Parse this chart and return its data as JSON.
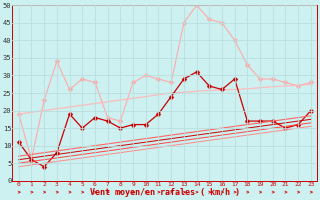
{
  "x": [
    0,
    1,
    2,
    3,
    4,
    5,
    6,
    7,
    8,
    9,
    10,
    11,
    12,
    13,
    14,
    15,
    16,
    17,
    18,
    19,
    20,
    21,
    22,
    23
  ],
  "series": [
    {
      "name": "rafales_max",
      "color": "#ffaaaa",
      "marker": "D",
      "markersize": 2.5,
      "linewidth": 0.8,
      "y": [
        19,
        6,
        23,
        34,
        26,
        29,
        28,
        18,
        17,
        28,
        30,
        29,
        28,
        45,
        50,
        46,
        45,
        40,
        33,
        29,
        29,
        28,
        27,
        28
      ]
    },
    {
      "name": "rafales_reg",
      "color": "#ffbbbb",
      "marker": null,
      "markersize": 0,
      "linewidth": 0.9,
      "y": [
        19,
        19.5,
        20,
        20.5,
        21,
        21.5,
        22,
        22.5,
        23,
        23.5,
        24,
        24.5,
        25,
        25.2,
        25.5,
        25.7,
        25.9,
        26,
        26.2,
        26.5,
        26.8,
        27,
        27.2,
        27.5
      ]
    },
    {
      "name": "vent_moy_max",
      "color": "#cc0000",
      "marker": "D",
      "markersize": 2.5,
      "linewidth": 0.9,
      "y": [
        11,
        6,
        4,
        8,
        19,
        15,
        18,
        17,
        15,
        16,
        16,
        19,
        24,
        29,
        31,
        27,
        26,
        29,
        17,
        17,
        17,
        15,
        16,
        20
      ]
    },
    {
      "name": "vent_moy_reg1",
      "color": "#ff6666",
      "marker": null,
      "markersize": 0,
      "linewidth": 0.8,
      "y": [
        7,
        7.5,
        8,
        8.5,
        9,
        9.5,
        10,
        10.5,
        11,
        11.5,
        12,
        12.5,
        13,
        13.5,
        14,
        14.5,
        15,
        15.5,
        16,
        16.5,
        17,
        17.5,
        18,
        18.5
      ]
    },
    {
      "name": "vent_moy_reg2",
      "color": "#cc0000",
      "marker": null,
      "markersize": 0,
      "linewidth": 0.7,
      "y": [
        6,
        6.5,
        7,
        7.5,
        8,
        8.5,
        9,
        9.5,
        10,
        10.5,
        11,
        11.5,
        12,
        12.5,
        13,
        13.5,
        14,
        14.5,
        15,
        15.5,
        16,
        16.5,
        17,
        17.5
      ]
    },
    {
      "name": "vent_moy_reg3",
      "color": "#ff4444",
      "marker": null,
      "markersize": 0,
      "linewidth": 0.7,
      "y": [
        5,
        5.5,
        6,
        6.5,
        7,
        7.5,
        8,
        8.5,
        9,
        9.5,
        10,
        10.5,
        11,
        11.5,
        12,
        12.5,
        13,
        13.5,
        14,
        14.5,
        15,
        15.5,
        16,
        16.5
      ]
    },
    {
      "name": "vent_moy_reg4",
      "color": "#ff8888",
      "marker": null,
      "markersize": 0,
      "linewidth": 0.7,
      "y": [
        4,
        4.5,
        5,
        5.5,
        6,
        6.5,
        7,
        7.5,
        8,
        8.5,
        9,
        9.5,
        10,
        10.5,
        11,
        11.5,
        12,
        12.5,
        13,
        13.5,
        14,
        14.5,
        15,
        15.5
      ]
    }
  ],
  "ylim": [
    0,
    50
  ],
  "yticks": [
    0,
    5,
    10,
    15,
    20,
    25,
    30,
    35,
    40,
    45,
    50
  ],
  "xlabel": "Vent moyen/en rafales ( km/h )",
  "background_color": "#cdf0f0",
  "grid_color": "#bbdddd",
  "spine_color": "#cc0000"
}
